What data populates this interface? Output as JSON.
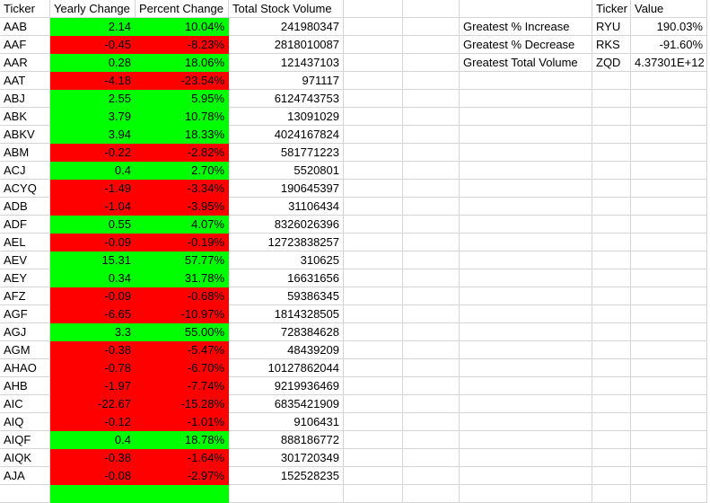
{
  "headers": [
    "Ticker",
    "Yearly Change",
    "Percent Change",
    "Total Stock Volume"
  ],
  "rows": [
    {
      "ticker": "AAB",
      "yearly": "2.14",
      "percent": "10.04%",
      "volume": "241980347",
      "status": "pos"
    },
    {
      "ticker": "AAF",
      "yearly": "-0.45",
      "percent": "-8.23%",
      "volume": "2818010087",
      "status": "neg"
    },
    {
      "ticker": "AAR",
      "yearly": "0.28",
      "percent": "18.06%",
      "volume": "121437103",
      "status": "pos"
    },
    {
      "ticker": "AAT",
      "yearly": "-4.18",
      "percent": "-23.54%",
      "volume": "971117",
      "status": "neg"
    },
    {
      "ticker": "ABJ",
      "yearly": "2.55",
      "percent": "5.95%",
      "volume": "6124743753",
      "status": "pos"
    },
    {
      "ticker": "ABK",
      "yearly": "3.79",
      "percent": "10.78%",
      "volume": "13091029",
      "status": "pos"
    },
    {
      "ticker": "ABKV",
      "yearly": "3.94",
      "percent": "18.33%",
      "volume": "4024167824",
      "status": "pos"
    },
    {
      "ticker": "ABM",
      "yearly": "-0.22",
      "percent": "-2.82%",
      "volume": "581771223",
      "status": "neg"
    },
    {
      "ticker": "ACJ",
      "yearly": "0.4",
      "percent": "2.70%",
      "volume": "5520801",
      "status": "pos"
    },
    {
      "ticker": "ACYQ",
      "yearly": "-1.49",
      "percent": "-3.34%",
      "volume": "190645397",
      "status": "neg"
    },
    {
      "ticker": "ADB",
      "yearly": "-1.04",
      "percent": "-3.95%",
      "volume": "31106434",
      "status": "neg"
    },
    {
      "ticker": "ADF",
      "yearly": "0.55",
      "percent": "4.07%",
      "volume": "8326026396",
      "status": "pos"
    },
    {
      "ticker": "AEL",
      "yearly": "-0.09",
      "percent": "-0.19%",
      "volume": "12723838257",
      "status": "neg"
    },
    {
      "ticker": "AEV",
      "yearly": "15.31",
      "percent": "57.77%",
      "volume": "310625",
      "status": "pos"
    },
    {
      "ticker": "AEY",
      "yearly": "0.34",
      "percent": "31.78%",
      "volume": "16631656",
      "status": "pos"
    },
    {
      "ticker": "AFZ",
      "yearly": "-0.09",
      "percent": "-0.68%",
      "volume": "59386345",
      "status": "neg"
    },
    {
      "ticker": "AGF",
      "yearly": "-6.65",
      "percent": "-10.97%",
      "volume": "1814328505",
      "status": "neg"
    },
    {
      "ticker": "AGJ",
      "yearly": "3.3",
      "percent": "55.00%",
      "volume": "728384628",
      "status": "pos"
    },
    {
      "ticker": "AGM",
      "yearly": "-0.38",
      "percent": "-5.47%",
      "volume": "48439209",
      "status": "neg"
    },
    {
      "ticker": "AHAO",
      "yearly": "-0.78",
      "percent": "-6.70%",
      "volume": "10127862044",
      "status": "neg"
    },
    {
      "ticker": "AHB",
      "yearly": "-1.97",
      "percent": "-7.74%",
      "volume": "9219936469",
      "status": "neg"
    },
    {
      "ticker": "AIC",
      "yearly": "-22.67",
      "percent": "-15.28%",
      "volume": "6835421909",
      "status": "neg"
    },
    {
      "ticker": "AIQ",
      "yearly": "-0.12",
      "percent": "-1.01%",
      "volume": "9106431",
      "status": "neg"
    },
    {
      "ticker": "AIQF",
      "yearly": "0.4",
      "percent": "18.78%",
      "volume": "888186772",
      "status": "pos"
    },
    {
      "ticker": "AIQK",
      "yearly": "-0.38",
      "percent": "-1.64%",
      "volume": "301720349",
      "status": "neg"
    },
    {
      "ticker": "AJA",
      "yearly": "-0.08",
      "percent": "-2.97%",
      "volume": "152528235",
      "status": "neg"
    },
    {
      "ticker": "",
      "yearly": "",
      "percent": "",
      "volume": "",
      "status": "pos"
    }
  ],
  "summary": {
    "header_ticker": "Ticker",
    "header_value": "Value",
    "rows": [
      {
        "label": "Greatest % Increase",
        "ticker": "RYU",
        "value": "190.03%"
      },
      {
        "label": "Greatest % Decrease",
        "ticker": "RKS",
        "value": "-91.60%"
      },
      {
        "label": "Greatest Total Volume",
        "ticker": "ZQD",
        "value": "4.37301E+12"
      }
    ]
  },
  "colors": {
    "positive": "#00ff00",
    "negative": "#ff0000",
    "gridline": "#d4d4d4"
  }
}
